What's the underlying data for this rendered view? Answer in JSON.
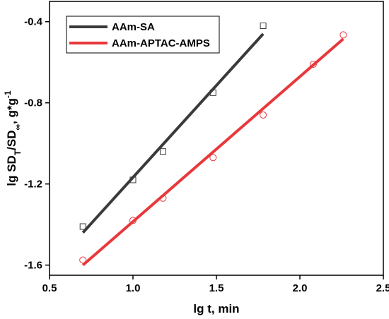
{
  "chart_data": {
    "type": "scatter",
    "xlabel": "lg t, min",
    "ylabel": {
      "base": "lg SD",
      "sub1": "T",
      "mid": "/SD",
      "sub2": "∞",
      "tail": ", g*g",
      "sup": "-1"
    },
    "xlim": [
      0.5,
      2.5
    ],
    "ylim": [
      -1.65,
      -0.3
    ],
    "xticks": [
      0.5,
      1.0,
      1.5,
      2.0,
      2.5
    ],
    "xtick_labels": [
      "0.5",
      "1.0",
      "1.5",
      "2.0",
      "2.5"
    ],
    "yticks": [
      -1.6,
      -1.2,
      -0.8,
      -0.4
    ],
    "ytick_labels": [
      "-1.6",
      "-1.2",
      "-0.8",
      "-0.4"
    ],
    "grid": false,
    "legend_position": "top-left",
    "series": [
      {
        "name": "AAm-SA",
        "color": "#3a3a3a",
        "marker": "square",
        "points": [
          [
            0.7,
            -1.41
          ],
          [
            1.0,
            -1.18
          ],
          [
            1.18,
            -1.04
          ],
          [
            1.48,
            -0.75
          ],
          [
            1.78,
            -0.42
          ]
        ],
        "fit": [
          [
            0.7,
            -1.44
          ],
          [
            1.78,
            -0.46
          ]
        ]
      },
      {
        "name": "AAm-APTAC-AMPS",
        "color": "#e8383c",
        "marker": "circle",
        "points": [
          [
            0.7,
            -1.575
          ],
          [
            1.0,
            -1.38
          ],
          [
            1.18,
            -1.27
          ],
          [
            1.48,
            -1.07
          ],
          [
            1.78,
            -0.86
          ],
          [
            2.08,
            -0.61
          ],
          [
            2.26,
            -0.465
          ]
        ],
        "fit": [
          [
            0.7,
            -1.6
          ],
          [
            2.26,
            -0.485
          ]
        ]
      }
    ]
  }
}
